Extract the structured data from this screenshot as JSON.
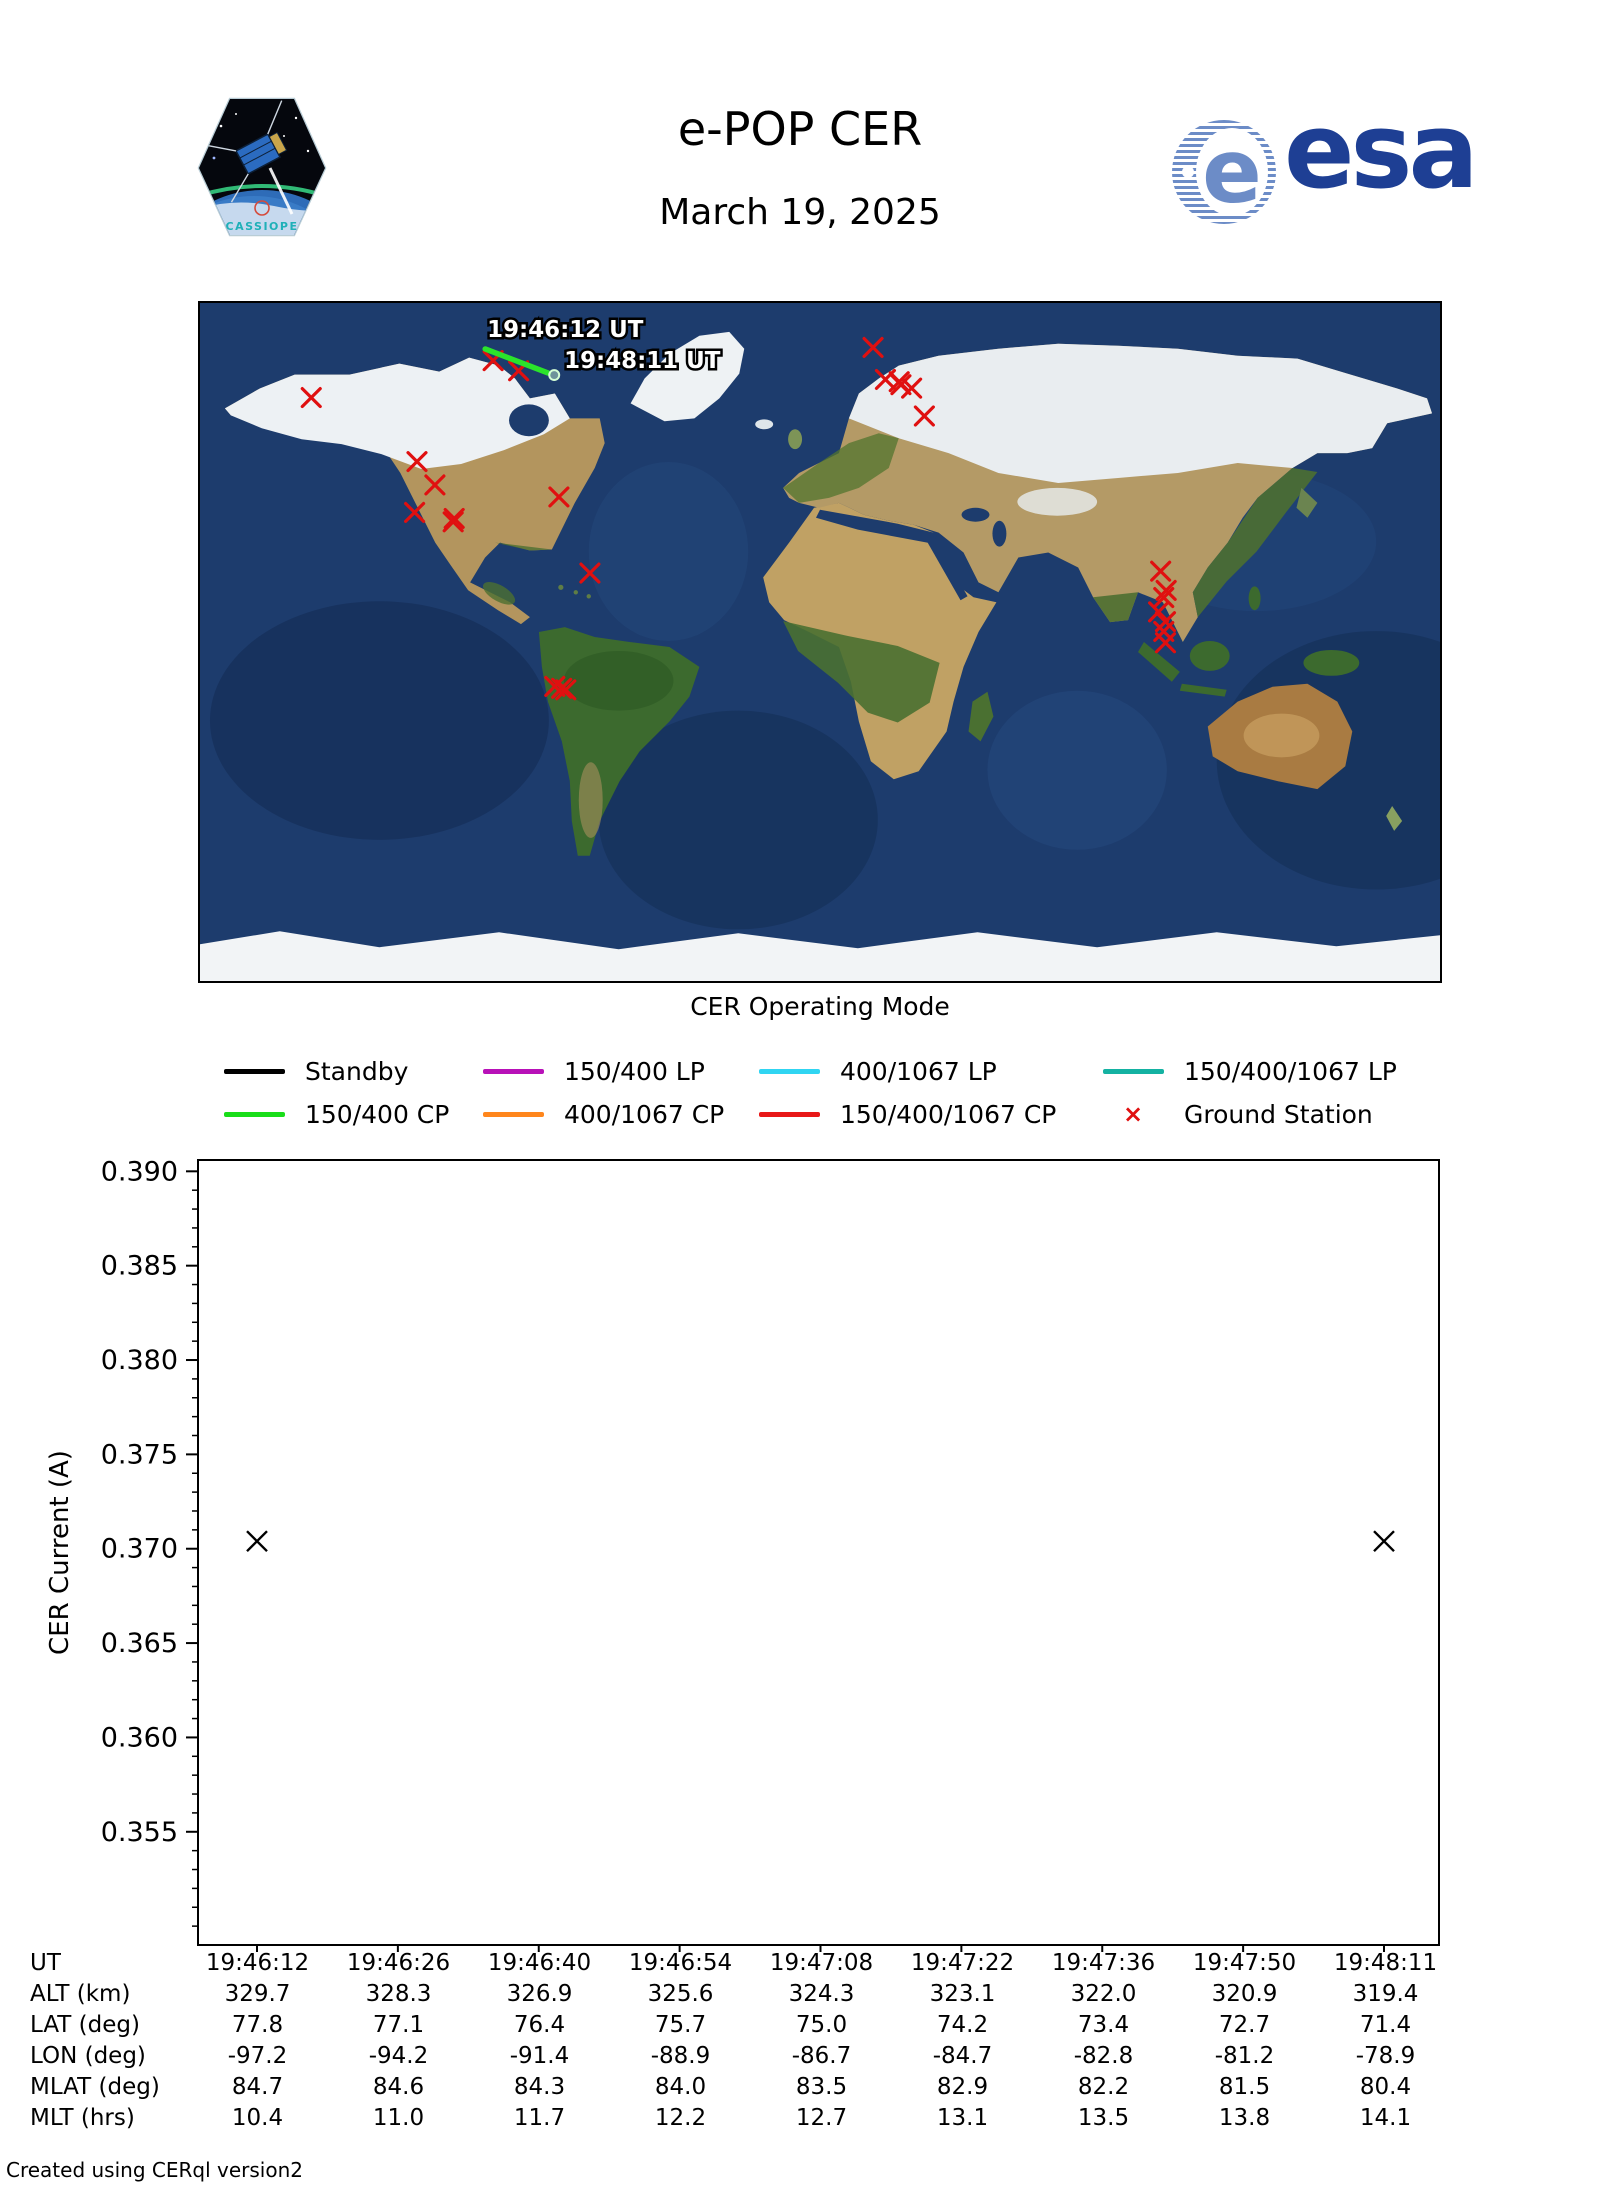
{
  "header": {
    "title": "e-POP CER",
    "date": "March 19, 2025"
  },
  "logos": {
    "cassiope_text": "CASSIOPE",
    "esa_text": "esa",
    "esa_blue": "#1e3f94",
    "esa_swirl_blue": "#6c8cc7"
  },
  "map": {
    "caption": "CER Operating Mode",
    "timestamps": {
      "start": "19:46:12 UT",
      "end": "19:48:11 UT"
    },
    "track": {
      "color": "#2be42b",
      "points_lonlat": [
        [
          -97.2,
          77.8
        ],
        [
          -78.9,
          71.4
        ]
      ]
    },
    "ground_stations": {
      "marker": "x",
      "color": "#e01010",
      "lonlat": [
        [
          -147.7,
          64.9
        ],
        [
          -94.9,
          74.7
        ],
        [
          -87.5,
          72.0
        ],
        [
          -117.0,
          47.9
        ],
        [
          -111.8,
          41.7
        ],
        [
          -117.7,
          34.4
        ],
        [
          -106.2,
          32.8
        ],
        [
          -106.5,
          31.9
        ],
        [
          -75.8,
          38.5
        ],
        [
          -66.8,
          18.3
        ],
        [
          -77.0,
          -11.8
        ],
        [
          -75.0,
          -12.3
        ],
        [
          -73.8,
          -12.7
        ],
        [
          15.4,
          78.2
        ],
        [
          19.0,
          69.7
        ],
        [
          23.0,
          69.1
        ],
        [
          23.5,
          68.3
        ],
        [
          26.6,
          67.4
        ],
        [
          30.3,
          60.0
        ],
        [
          98.9,
          18.8
        ],
        [
          100.5,
          13.7
        ],
        [
          99.8,
          11.8
        ],
        [
          98.3,
          8.0
        ],
        [
          100.3,
          5.4
        ],
        [
          99.8,
          2.8
        ],
        [
          100.3,
          -0.2
        ]
      ]
    }
  },
  "legend": {
    "rows": [
      [
        {
          "label": "Standby",
          "color": "#000000",
          "kind": "line"
        },
        {
          "label": "150/400 LP",
          "color": "#b811b8",
          "kind": "line"
        },
        {
          "label": "400/1067 LP",
          "color": "#30d5f2",
          "kind": "line"
        },
        {
          "label": "150/400/1067 LP",
          "color": "#14b2a2",
          "kind": "line"
        }
      ],
      [
        {
          "label": "150/400 CP",
          "color": "#19dd19",
          "kind": "line"
        },
        {
          "label": "400/1067 CP",
          "color": "#ff861c",
          "kind": "line"
        },
        {
          "label": "150/400/1067 CP",
          "color": "#e81818",
          "kind": "line"
        },
        {
          "label": "Ground Station",
          "color": "#e01010",
          "kind": "x-marker"
        }
      ]
    ]
  },
  "chart_data": {
    "type": "scatter",
    "title": "",
    "ylabel": "CER Current (A)",
    "marker": "x",
    "marker_color": "#000000",
    "ylim": [
      0.349,
      0.3906
    ],
    "yticks": [
      0.355,
      0.36,
      0.365,
      0.37,
      0.375,
      0.38,
      0.385,
      0.39
    ],
    "ytick_labels": [
      "0.355",
      "0.360",
      "0.365",
      "0.370",
      "0.375",
      "0.380",
      "0.385",
      "0.390"
    ],
    "y_minor_step": 0.001,
    "grid": false,
    "x_categories": [
      "19:46:12",
      "19:46:26",
      "19:46:40",
      "19:46:54",
      "19:47:08",
      "19:47:22",
      "19:47:36",
      "19:47:50",
      "19:48:11"
    ],
    "points": [
      {
        "x": "19:46:12",
        "y": 0.3704
      },
      {
        "x": "19:48:11",
        "y": 0.3704
      }
    ]
  },
  "table": {
    "rows": [
      {
        "label": "UT",
        "values": [
          "19:46:12",
          "19:46:26",
          "19:46:40",
          "19:46:54",
          "19:47:08",
          "19:47:22",
          "19:47:36",
          "19:47:50",
          "19:48:11"
        ]
      },
      {
        "label": "ALT (km)",
        "values": [
          "329.7",
          "328.3",
          "326.9",
          "325.6",
          "324.3",
          "323.1",
          "322.0",
          "320.9",
          "319.4"
        ]
      },
      {
        "label": "LAT (deg)",
        "values": [
          "77.8",
          "77.1",
          "76.4",
          "75.7",
          "75.0",
          "74.2",
          "73.4",
          "72.7",
          "71.4"
        ]
      },
      {
        "label": "LON (deg)",
        "values": [
          "-97.2",
          "-94.2",
          "-91.4",
          "-88.9",
          "-86.7",
          "-84.7",
          "-82.8",
          "-81.2",
          "-78.9"
        ]
      },
      {
        "label": "MLAT (deg)",
        "values": [
          "84.7",
          "84.6",
          "84.3",
          "84.0",
          "83.5",
          "82.9",
          "82.2",
          "81.5",
          "80.4"
        ]
      },
      {
        "label": "MLT (hrs)",
        "values": [
          "10.4",
          "11.0",
          "11.7",
          "12.2",
          "12.7",
          "13.1",
          "13.5",
          "13.8",
          "14.1"
        ]
      }
    ]
  },
  "footer": {
    "credit": "Created using CERql version2"
  }
}
